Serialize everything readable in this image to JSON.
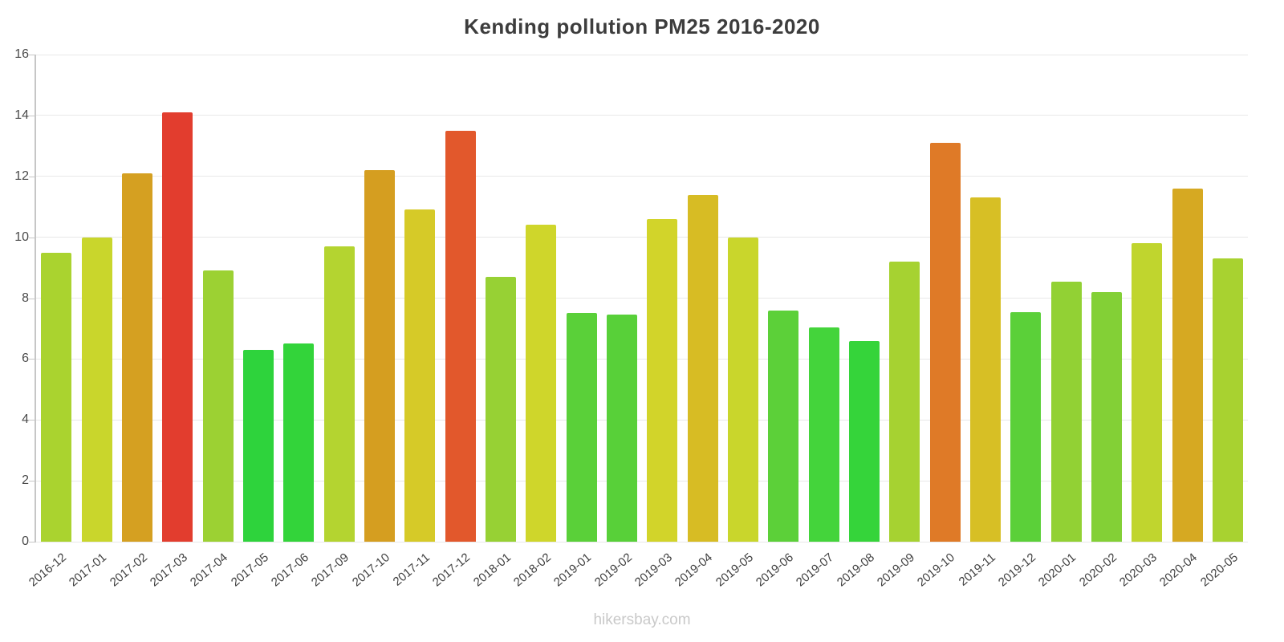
{
  "page": {
    "watermark": "hikersbay.com"
  },
  "chart_data": {
    "type": "bar",
    "title": "Kending pollution PM25 2016-2020",
    "xlabel": "",
    "ylabel": "",
    "ylim": [
      0,
      16
    ],
    "yticks": [
      0,
      2,
      4,
      6,
      8,
      10,
      12,
      14,
      16
    ],
    "grid": true,
    "legend": "none",
    "categories": [
      "2016-12",
      "2017-01",
      "2017-02",
      "2017-03",
      "2017-04",
      "2017-05",
      "2017-06",
      "2017-09",
      "2017-10",
      "2017-11",
      "2017-12",
      "2018-01",
      "2018-02",
      "2019-01",
      "2019-02",
      "2019-03",
      "2019-04",
      "2019-05",
      "2019-06",
      "2019-07",
      "2019-08",
      "2019-09",
      "2019-10",
      "2019-11",
      "2019-12",
      "2020-01",
      "2020-02",
      "2020-03",
      "2020-04",
      "2020-05"
    ],
    "values": [
      9.5,
      10.0,
      12.1,
      14.1,
      8.9,
      6.3,
      6.5,
      9.7,
      12.2,
      10.9,
      13.5,
      8.7,
      10.4,
      7.5,
      7.45,
      10.6,
      11.4,
      10.0,
      7.6,
      7.05,
      6.6,
      9.2,
      13.1,
      11.3,
      7.55,
      8.55,
      8.2,
      9.8,
      11.6,
      9.3
    ],
    "bar_colors": [
      "#aad32f",
      "#c9d62c",
      "#d5a021",
      "#e23d2e",
      "#9cd133",
      "#2ed33c",
      "#33d43a",
      "#b4d430",
      "#d59e20",
      "#d6ca28",
      "#e2582c",
      "#97d134",
      "#cfd62b",
      "#5ad039",
      "#58d039",
      "#d2d42a",
      "#d7bc24",
      "#c9d62c",
      "#5cd039",
      "#44d43b",
      "#35d43a",
      "#a6d231",
      "#df7a27",
      "#d7bf25",
      "#5bd039",
      "#92d134",
      "#83d036",
      "#c0d52e",
      "#d6a922",
      "#a8d230"
    ]
  }
}
